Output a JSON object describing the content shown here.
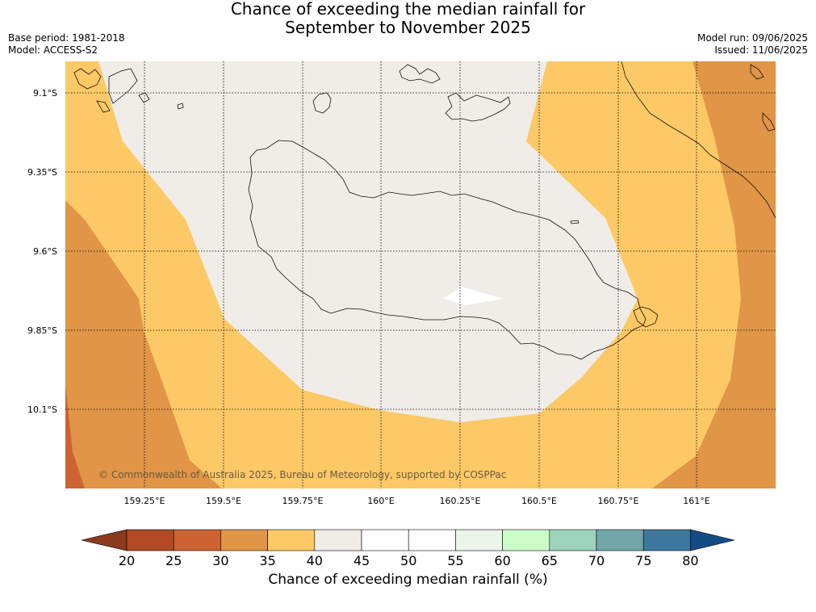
{
  "title": {
    "line1": "Chance of exceeding the median rainfall for",
    "line2": "September to November 2025"
  },
  "meta_left": {
    "base_period": "Base period: 1981-2018",
    "model": "Model: ACCESS-S2"
  },
  "meta_right": {
    "model_run": "Model run: 09/06/2025",
    "issued": "Issued: 11/06/2025"
  },
  "map": {
    "lat_labels": [
      "9.1°S",
      "9.35°S",
      "9.6°S",
      "9.85°S",
      "10.1°S"
    ],
    "lon_labels": [
      "159.25°E",
      "159.5°E",
      "159.75°E",
      "160°E",
      "160.25°E",
      "160.5°E",
      "160.75°E",
      "161°E"
    ],
    "copyright": "© Commonwealth of Australia 2025, Bureau of Meteorology, supported by COSPPac"
  },
  "colorbar": {
    "ticks": [
      "20",
      "25",
      "30",
      "35",
      "40",
      "45",
      "50",
      "55",
      "60",
      "65",
      "70",
      "75",
      "80"
    ],
    "colors": [
      "#8b3a20",
      "#b14a24",
      "#cd6232",
      "#e09547",
      "#fdc966",
      "#f0ece8",
      "#ffffff",
      "#ffffff",
      "#ebf5ea",
      "#ccfdc9",
      "#9dd3bd",
      "#72a5a7",
      "#3d779b",
      "#134b86"
    ],
    "label": "Chance of exceeding median rainfall (%)"
  }
}
